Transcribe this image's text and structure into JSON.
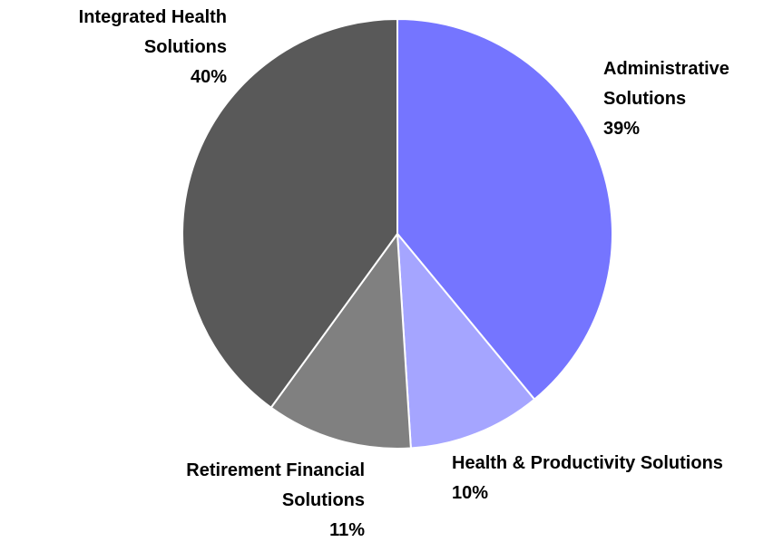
{
  "chart_data": {
    "type": "pie",
    "categories": [
      "Administrative Solutions",
      "Health & Productivity Solutions",
      "Retirement Financial Solutions",
      "Integrated Health Solutions"
    ],
    "values": [
      39,
      10,
      11,
      40
    ],
    "value_labels": [
      "39%",
      "10%",
      "11%",
      "40%"
    ],
    "colors": [
      "#7575ff",
      "#a5a5ff",
      "#808080",
      "#595959"
    ]
  }
}
